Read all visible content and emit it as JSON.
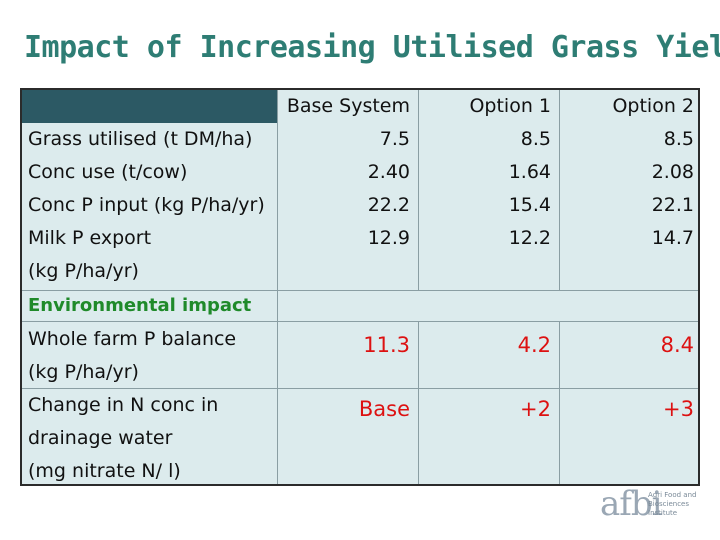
{
  "title": "Impact of Increasing Utilised Grass Yield",
  "table": {
    "columns": [
      "Base System",
      "Option 1",
      "Option 2"
    ],
    "rows": [
      {
        "label": "Grass utilised (t DM/ha)",
        "values": [
          "7.5",
          "8.5",
          "8.5"
        ]
      },
      {
        "label": "Conc use (t/cow)",
        "values": [
          "2.40",
          "1.64",
          "2.08"
        ]
      },
      {
        "label": "Conc P input (kg P/ha/yr)",
        "values": [
          "22.2",
          "15.4",
          "22.1"
        ]
      },
      {
        "label_lines": [
          "Milk P export",
          "(kg P/ha/yr)"
        ],
        "values": [
          "12.9",
          "12.2",
          "14.7"
        ]
      }
    ],
    "section_label": "Environmental impact",
    "impact_rows": [
      {
        "label_lines": [
          "Whole farm P balance",
          "(kg P/ha/yr)"
        ],
        "values": [
          "11.3",
          "4.2",
          "8.4"
        ]
      },
      {
        "label_lines": [
          "Change in N conc in",
          "drainage water",
          "(mg nitrate N/ l)"
        ],
        "values": [
          "Base",
          "+2",
          "+3"
        ]
      }
    ]
  },
  "logo": {
    "text": "afbi",
    "sub_lines": [
      "Agri Food and",
      "Biosciences Institute"
    ]
  },
  "colors": {
    "title": "#2e7d74",
    "header_dark": "#2c5964",
    "table_bg": "#dcebed",
    "env_label": "#1f8a2a",
    "impact_values": "#dd1111"
  }
}
